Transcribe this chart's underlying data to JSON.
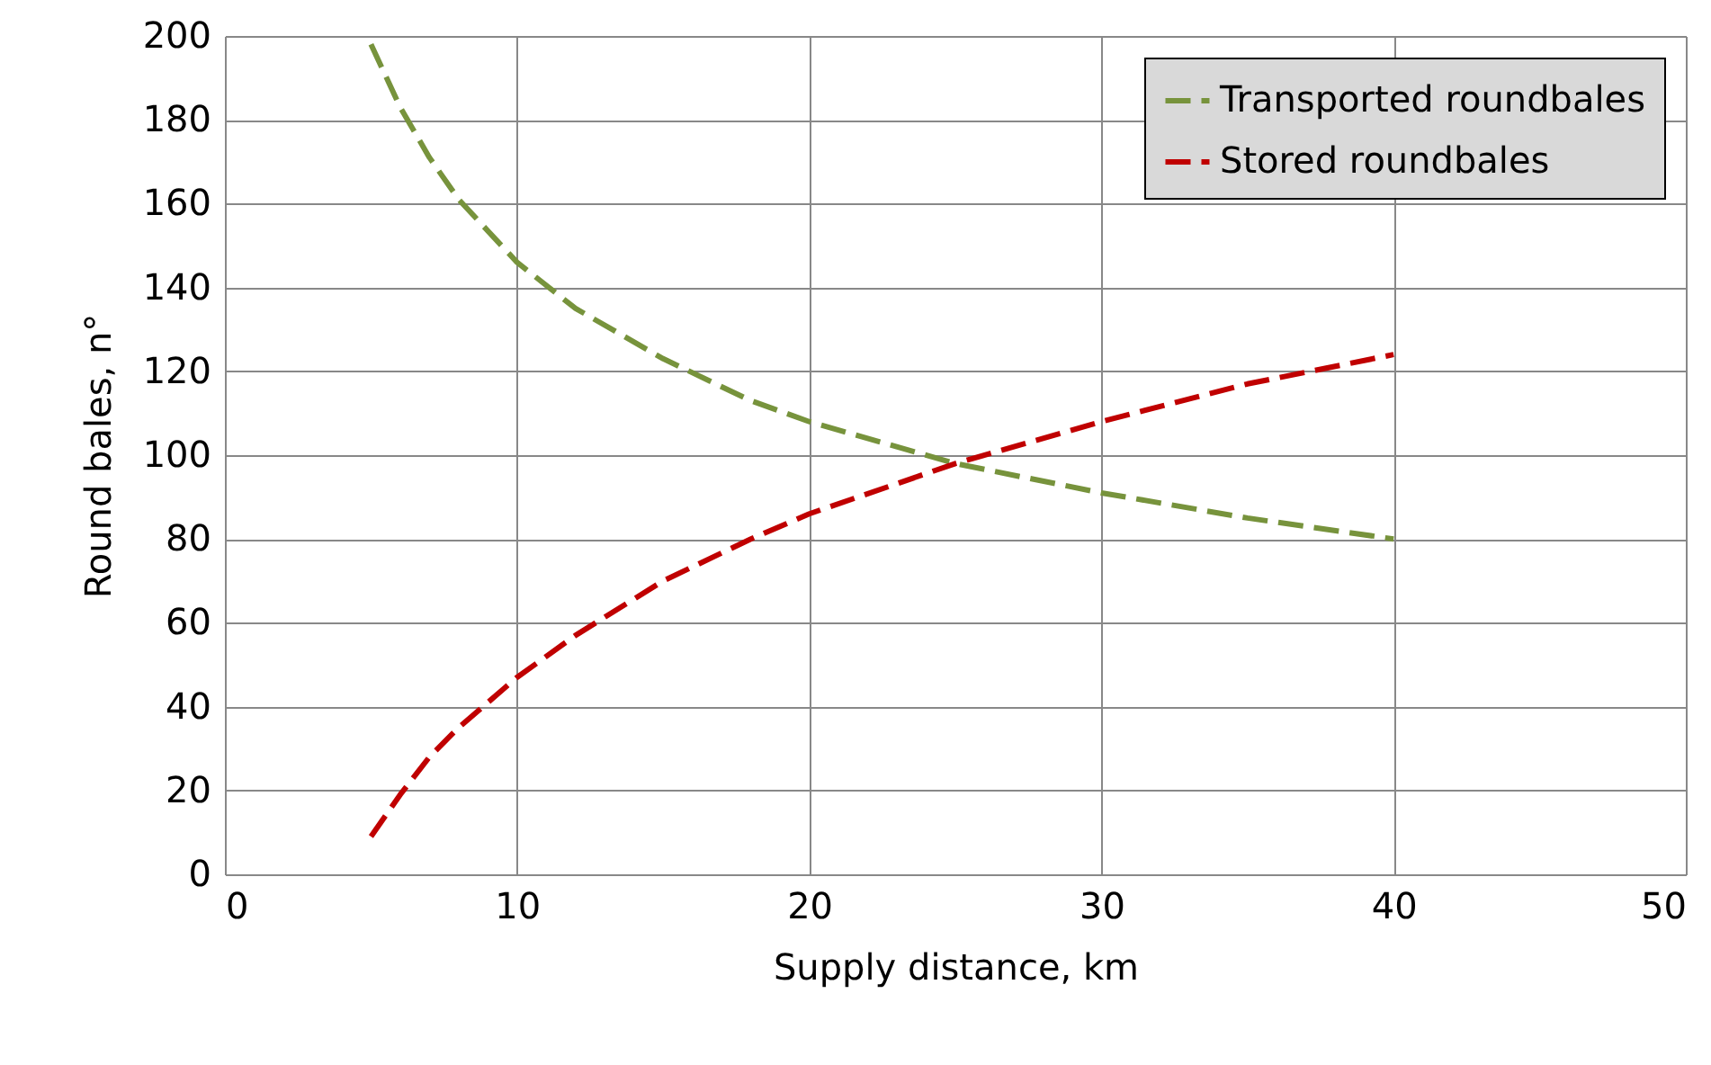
{
  "chart_data": {
    "type": "line",
    "xlabel": "Supply distance, km",
    "ylabel": "Round bales, n°",
    "x": [
      5,
      6,
      7,
      8,
      10,
      12,
      15,
      18,
      20,
      25,
      30,
      35,
      40
    ],
    "series": [
      {
        "name": "Transported roundbales",
        "color": "#77933c",
        "values": [
          198,
          183,
          171,
          161,
          146,
          135,
          123,
          113,
          108,
          98,
          91,
          85,
          80
        ]
      },
      {
        "name": "Stored roundbales",
        "color": "#c00000",
        "values": [
          9,
          19,
          28,
          35,
          47,
          57,
          70,
          80,
          86,
          98,
          108,
          117,
          124
        ]
      }
    ],
    "xlim": [
      0,
      50
    ],
    "xticks": [
      0,
      10,
      20,
      30,
      40,
      50
    ],
    "ylim": [
      0,
      200
    ],
    "yticks": [
      0,
      20,
      40,
      60,
      80,
      100,
      120,
      140,
      160,
      180,
      200
    ],
    "grid": true,
    "legend": "top right",
    "line_style": "dashed",
    "marker": "none"
  }
}
